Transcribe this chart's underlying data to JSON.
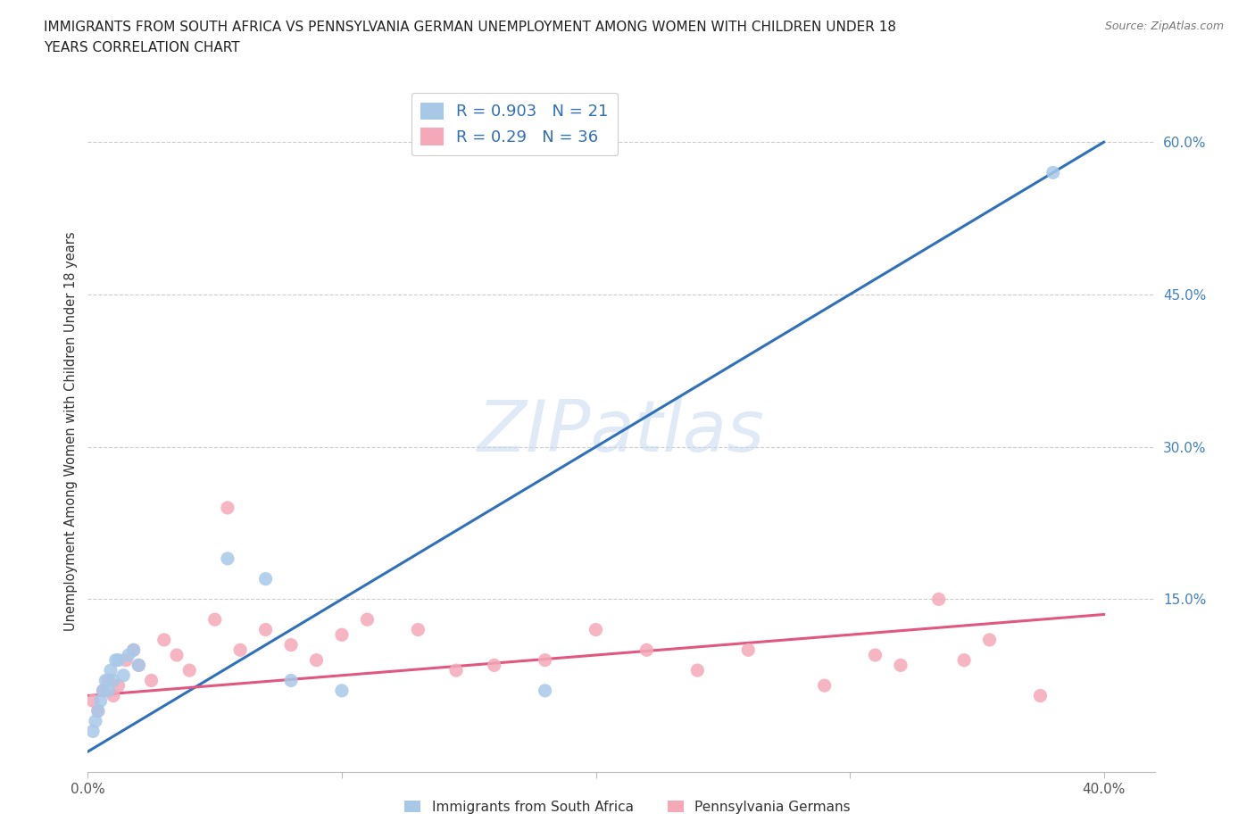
{
  "title_line1": "IMMIGRANTS FROM SOUTH AFRICA VS PENNSYLVANIA GERMAN UNEMPLOYMENT AMONG WOMEN WITH CHILDREN UNDER 18",
  "title_line2": "YEARS CORRELATION CHART",
  "source": "Source: ZipAtlas.com",
  "ylabel": "Unemployment Among Women with Children Under 18 years",
  "xlim": [
    0.0,
    0.42
  ],
  "ylim": [
    -0.02,
    0.65
  ],
  "r1": 0.903,
  "n1": 21,
  "r2": 0.29,
  "n2": 36,
  "color1": "#a8c8e8",
  "color2": "#f4a8b8",
  "line_color1": "#3070b8",
  "line_color2": "#e05880",
  "tick_color": "#4080c0",
  "watermark": "ZIPatlas",
  "background_color": "#ffffff",
  "legend_label1": "Immigrants from South Africa",
  "legend_label2": "Pennsylvania Germans",
  "south_africa_x": [
    0.002,
    0.003,
    0.004,
    0.005,
    0.006,
    0.007,
    0.008,
    0.009,
    0.01,
    0.011,
    0.012,
    0.014,
    0.016,
    0.018,
    0.02,
    0.055,
    0.07,
    0.08,
    0.1,
    0.18,
    0.38
  ],
  "south_africa_y": [
    0.02,
    0.03,
    0.04,
    0.05,
    0.06,
    0.07,
    0.06,
    0.08,
    0.07,
    0.09,
    0.09,
    0.075,
    0.095,
    0.1,
    0.085,
    0.19,
    0.17,
    0.07,
    0.06,
    0.06,
    0.57
  ],
  "penn_german_x": [
    0.002,
    0.004,
    0.006,
    0.008,
    0.01,
    0.012,
    0.015,
    0.018,
    0.02,
    0.025,
    0.03,
    0.035,
    0.04,
    0.05,
    0.055,
    0.06,
    0.07,
    0.08,
    0.09,
    0.1,
    0.11,
    0.13,
    0.145,
    0.16,
    0.18,
    0.2,
    0.22,
    0.24,
    0.26,
    0.29,
    0.31,
    0.32,
    0.335,
    0.345,
    0.355,
    0.375
  ],
  "penn_german_y": [
    0.05,
    0.04,
    0.06,
    0.07,
    0.055,
    0.065,
    0.09,
    0.1,
    0.085,
    0.07,
    0.11,
    0.095,
    0.08,
    0.13,
    0.24,
    0.1,
    0.12,
    0.105,
    0.09,
    0.115,
    0.13,
    0.12,
    0.08,
    0.085,
    0.09,
    0.12,
    0.1,
    0.08,
    0.1,
    0.065,
    0.095,
    0.085,
    0.15,
    0.09,
    0.11,
    0.055
  ],
  "blue_line_x0": 0.0,
  "blue_line_y0": 0.0,
  "blue_line_x1": 0.4,
  "blue_line_y1": 0.6,
  "pink_line_x0": 0.0,
  "pink_line_y0": 0.055,
  "pink_line_x1": 0.4,
  "pink_line_y1": 0.135
}
